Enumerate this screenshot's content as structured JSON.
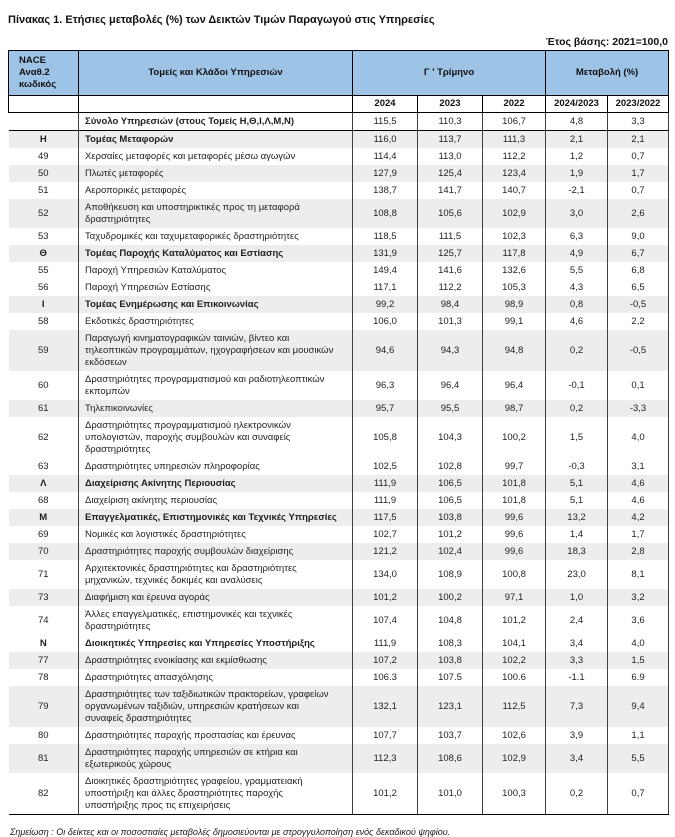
{
  "title": "Πίνακας 1. Ετήσιες μεταβολές (%) των Δεικτών Τιμών Παραγωγού στις Υπηρεσίες",
  "base_year_note": "Έτος βάσης: 2021=100,0",
  "footnote": "Σημείωση : Οι δείκτες και οι ποσοστιαίες μεταβολές δημοσιεύονται με στρογγυλοποίηση ενός δεκαδικού ψηφίου.",
  "colors": {
    "header_blue": "#9DC3E6",
    "stripe_gray": "#EDEDED",
    "border_dark": "#000000"
  },
  "table": {
    "col_headers": {
      "code": "NACE Αναθ.2 κωδικός",
      "sectors": "Τομείς και Κλάδοι Υπηρεσιών",
      "quarter_group": "Γ ' Τρίμηνο",
      "change_group": "Μεταβολή (%)"
    },
    "year_headers": [
      "2024",
      "2023",
      "2022",
      "2024/2023",
      "2023/2022"
    ],
    "rows": [
      {
        "code": "",
        "label": "Σύνολο Υπηρεσιών (στους Τομείς Η,Θ,Ι,Λ,Μ,Ν)",
        "bold": true,
        "shaded": false,
        "values": [
          "115,5",
          "110,3",
          "106,7",
          "4,8",
          "3,3"
        ]
      },
      {
        "code": "Η",
        "label": "Τομέας Μεταφορών",
        "bold": true,
        "shaded": true,
        "values": [
          "116,0",
          "113,7",
          "111,3",
          "2,1",
          "2,1"
        ]
      },
      {
        "code": "49",
        "label": "Χερσαίες μεταφορές και μεταφορές μέσω αγωγών",
        "bold": false,
        "shaded": false,
        "values": [
          "114,4",
          "113,0",
          "112,2",
          "1,2",
          "0,7"
        ]
      },
      {
        "code": "50",
        "label": "Πλωτές μεταφορές",
        "bold": false,
        "shaded": true,
        "values": [
          "127,9",
          "125,4",
          "123,4",
          "1,9",
          "1,7"
        ]
      },
      {
        "code": "51",
        "label": "Αεροπορικές μεταφορές",
        "bold": false,
        "shaded": false,
        "values": [
          "138,7",
          "141,7",
          "140,7",
          "-2,1",
          "0,7"
        ]
      },
      {
        "code": "52",
        "label": "Αποθήκευση και υποστηρικτικές προς τη μεταφορά δραστηριότητες",
        "bold": false,
        "shaded": true,
        "values": [
          "108,8",
          "105,6",
          "102,9",
          "3,0",
          "2,6"
        ]
      },
      {
        "code": "53",
        "label": "Ταχυδρομικές και ταχυμεταφορικές δραστηριότητες",
        "bold": false,
        "shaded": false,
        "values": [
          "118,5",
          "111,5",
          "102,3",
          "6,3",
          "9,0"
        ]
      },
      {
        "code": "Θ",
        "label": "Τομέας Παροχής Καταλύματος και Εστίασης",
        "bold": true,
        "shaded": true,
        "values": [
          "131,9",
          "125,7",
          "117,8",
          "4,9",
          "6,7"
        ]
      },
      {
        "code": "55",
        "label": "Παροχή Υπηρεσιών Καταλύματος",
        "bold": false,
        "shaded": false,
        "values": [
          "149,4",
          "141,6",
          "132,6",
          "5,5",
          "6,8"
        ]
      },
      {
        "code": "56",
        "label": "Παροχή Υπηρεσιών Εστίασης",
        "bold": false,
        "shaded": false,
        "values": [
          "117,1",
          "112,2",
          "105,3",
          "4,3",
          "6,5"
        ]
      },
      {
        "code": "Ι",
        "label": "Τομέας Ενημέρωσης και Επικοινωνίας",
        "bold": true,
        "shaded": true,
        "values": [
          "99,2",
          "98,4",
          "98,9",
          "0,8",
          "-0,5"
        ]
      },
      {
        "code": "58",
        "label": "Εκδοτικές δραστηριότητες",
        "bold": false,
        "shaded": false,
        "values": [
          "106,0",
          "101,3",
          "99,1",
          "4,6",
          "2,2"
        ]
      },
      {
        "code": "59",
        "label": "Παραγωγή κινηματογραφικών ταινιών, βίντεο και τηλεοπτικών προγραμμάτων, ηχογραφήσεων και μουσικών εκδόσεων",
        "bold": false,
        "shaded": true,
        "values": [
          "94,6",
          "94,3",
          "94,8",
          "0,2",
          "-0,5"
        ]
      },
      {
        "code": "60",
        "label": "Δραστηριότητες προγραμματισμού και ραδιοτηλεοπτικών εκπομπών",
        "bold": false,
        "shaded": false,
        "values": [
          "96,3",
          "96,4",
          "96,4",
          "-0,1",
          "0,1"
        ]
      },
      {
        "code": "61",
        "label": "Τηλεπικοινωνίες",
        "bold": false,
        "shaded": true,
        "values": [
          "95,7",
          "95,5",
          "98,7",
          "0,2",
          "-3,3"
        ]
      },
      {
        "code": "62",
        "label": "Δραστηριότητες προγραμματισμού ηλεκτρονικών υπολογιστών, παροχής συμβουλών και συναφείς δραστηριότητες",
        "bold": false,
        "shaded": false,
        "values": [
          "105,8",
          "104,3",
          "100,2",
          "1,5",
          "4,0"
        ]
      },
      {
        "code": "63",
        "label": "Δραστηριότητες υπηρεσιών πληροφορίας",
        "bold": false,
        "shaded": false,
        "values": [
          "102,5",
          "102,8",
          "99,7",
          "-0,3",
          "3,1"
        ]
      },
      {
        "code": "Λ",
        "label": "Διαχείρισης Ακίνητης Περιουσίας",
        "bold": true,
        "shaded": true,
        "values": [
          "111,9",
          "106,5",
          "101,8",
          "5,1",
          "4,6"
        ]
      },
      {
        "code": "68",
        "label": "Διαχείριση ακίνητης περιουσίας",
        "bold": false,
        "shaded": false,
        "values": [
          "111,9",
          "106,5",
          "101,8",
          "5,1",
          "4,6"
        ]
      },
      {
        "code": "Μ",
        "label": "Επαγγελματικές, Επιστημονικές και Τεχνικές Υπηρεσίες",
        "bold": true,
        "shaded": true,
        "values": [
          "117,5",
          "103,8",
          "99,6",
          "13,2",
          "4,2"
        ]
      },
      {
        "code": "69",
        "label": "Νομικές και λογιστικές δραστηριότητες",
        "bold": false,
        "shaded": false,
        "values": [
          "102,7",
          "101,2",
          "99,6",
          "1,4",
          "1,7"
        ]
      },
      {
        "code": "70",
        "label": "Δραστηριότητες παροχής συμβουλών διαχείρισης",
        "bold": false,
        "shaded": true,
        "values": [
          "121,2",
          "102,4",
          "99,6",
          "18,3",
          "2,8"
        ]
      },
      {
        "code": "71",
        "label": "Αρχιτεκτονικές δραστηριότητες και δραστηριότητες μηχανικών, τεχνικές δοκιμές και αναλύσεις",
        "bold": false,
        "shaded": false,
        "values": [
          "134,0",
          "108,9",
          "100,8",
          "23,0",
          "8,1"
        ]
      },
      {
        "code": "73",
        "label": "Διαφήμιση και έρευνα αγοράς",
        "bold": false,
        "shaded": true,
        "values": [
          "101,2",
          "100,2",
          "97,1",
          "1,0",
          "3,2"
        ]
      },
      {
        "code": "74",
        "label": "Άλλες επαγγελματικές, επιστημονικές και τεχνικές δραστηριότητες",
        "bold": false,
        "shaded": false,
        "values": [
          "107,4",
          "104,8",
          "101,2",
          "2,4",
          "3,6"
        ]
      },
      {
        "code": "Ν",
        "label": "Διοικητικές Υπηρεσίες και Υπηρεσίες Υποστήριξης",
        "bold": true,
        "shaded": false,
        "values": [
          "111,9",
          "108,3",
          "104,1",
          "3,4",
          "4,0"
        ]
      },
      {
        "code": "77",
        "label": "Δραστηριότητες ενοικίασης και εκμίσθωσης",
        "bold": false,
        "shaded": true,
        "values": [
          "107,2",
          "103,8",
          "102,2",
          "3,3",
          "1,5"
        ]
      },
      {
        "code": "78",
        "label": "Δραστηριότητες απασχόλησης",
        "bold": false,
        "shaded": false,
        "values": [
          "106.3",
          "107.5",
          "100.6",
          "-1.1",
          "6.9"
        ]
      },
      {
        "code": "79",
        "label": "Δραστηριότητες των ταξιδιωτικών πρακτορείων, γραφείων οργανωμένων ταξιδιών, υπηρεσιών κρατήσεων και συναφείς δραστηριότητες",
        "bold": false,
        "shaded": true,
        "values": [
          "132,1",
          "123,1",
          "112,5",
          "7,3",
          "9,4"
        ]
      },
      {
        "code": "80",
        "label": "Δραστηριότητες παροχής προστασίας και έρευνας",
        "bold": false,
        "shaded": false,
        "values": [
          "107,7",
          "103,7",
          "102,6",
          "3,9",
          "1,1"
        ]
      },
      {
        "code": "81",
        "label": "Δραστηριότητες παροχής υπηρεσιών σε κτήρια και εξωτερικούς χώρους",
        "bold": false,
        "shaded": true,
        "values": [
          "112,3",
          "108,6",
          "102,9",
          "3,4",
          "5,5"
        ]
      },
      {
        "code": "82",
        "label": "Διοικητικές δραστηριότητες γραφείου, γραμματειακή υποστήριξη και άλλες δραστηριότητες παροχής υποστήριξης προς τις επιχειρήσεις",
        "bold": false,
        "shaded": false,
        "values": [
          "101,2",
          "101,0",
          "100,3",
          "0,2",
          "0,7"
        ]
      }
    ]
  }
}
